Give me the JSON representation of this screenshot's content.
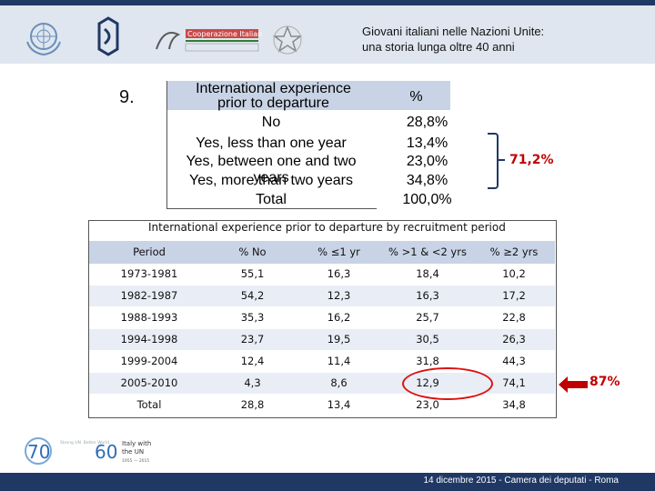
{
  "header": {
    "title_line1": "Giovani italiani nelle Nazioni Unite:",
    "title_line2": "una storia lunga oltre 40 anni"
  },
  "slide_number": "9.",
  "table1": {
    "col1_header": "International experience prior to departure",
    "col2_header": "%",
    "rows": [
      {
        "label": "No",
        "value": "28,8%"
      },
      {
        "label": "Yes, less than one year",
        "value": "13,4%"
      },
      {
        "label": "Yes, between one and two years",
        "value": "23,0%"
      },
      {
        "label": "Yes, more than two years",
        "value": "34,8%"
      },
      {
        "label": "Total",
        "value": "100,0%"
      }
    ],
    "annotation": "71,2%"
  },
  "table2": {
    "title": "International experience prior to departure by recruitment period",
    "headers": [
      "Period",
      "% No",
      "% ≤1 yr",
      "% >1 & <2 yrs",
      "% ≥2 yrs"
    ],
    "rows": [
      [
        "1973-1981",
        "55,1",
        "16,3",
        "18,4",
        "10,2"
      ],
      [
        "1982-1987",
        "54,2",
        "12,3",
        "16,3",
        "17,2"
      ],
      [
        "1988-1993",
        "35,3",
        "16,2",
        "25,7",
        "22,8"
      ],
      [
        "1994-1998",
        "23,7",
        "19,5",
        "30,5",
        "26,3"
      ],
      [
        "1999-2004",
        "12,4",
        "11,4",
        "31,8",
        "44,3"
      ],
      [
        "2005-2010",
        "4,3",
        "8,6",
        "12,9",
        "74,1"
      ],
      [
        "Total",
        "28,8",
        "13,4",
        "23,0",
        "34,8"
      ]
    ],
    "annotation": "87%"
  },
  "logos": {
    "cooperazione": "Cooperazione Italiana allo Sviluppo",
    "ministero": "Ministero degli Affari Esteri e della Cooperazione Internazionale",
    "un70": "70",
    "italy60": "60",
    "italy60_text_line1": "Italy with",
    "italy60_text_line2": "the UN",
    "italy60_years": "1955 — 2015",
    "un70_tag": "Strong UN. Better World."
  },
  "footer": {
    "text": "14 dicembre 2015 - Camera dei deputati - Roma"
  },
  "colors": {
    "navy": "#1f3864",
    "header_bg": "#dfe6ef",
    "table_header": "#c8d3e6",
    "alt_row": "#e9edf5",
    "accent_red": "#c00000"
  }
}
